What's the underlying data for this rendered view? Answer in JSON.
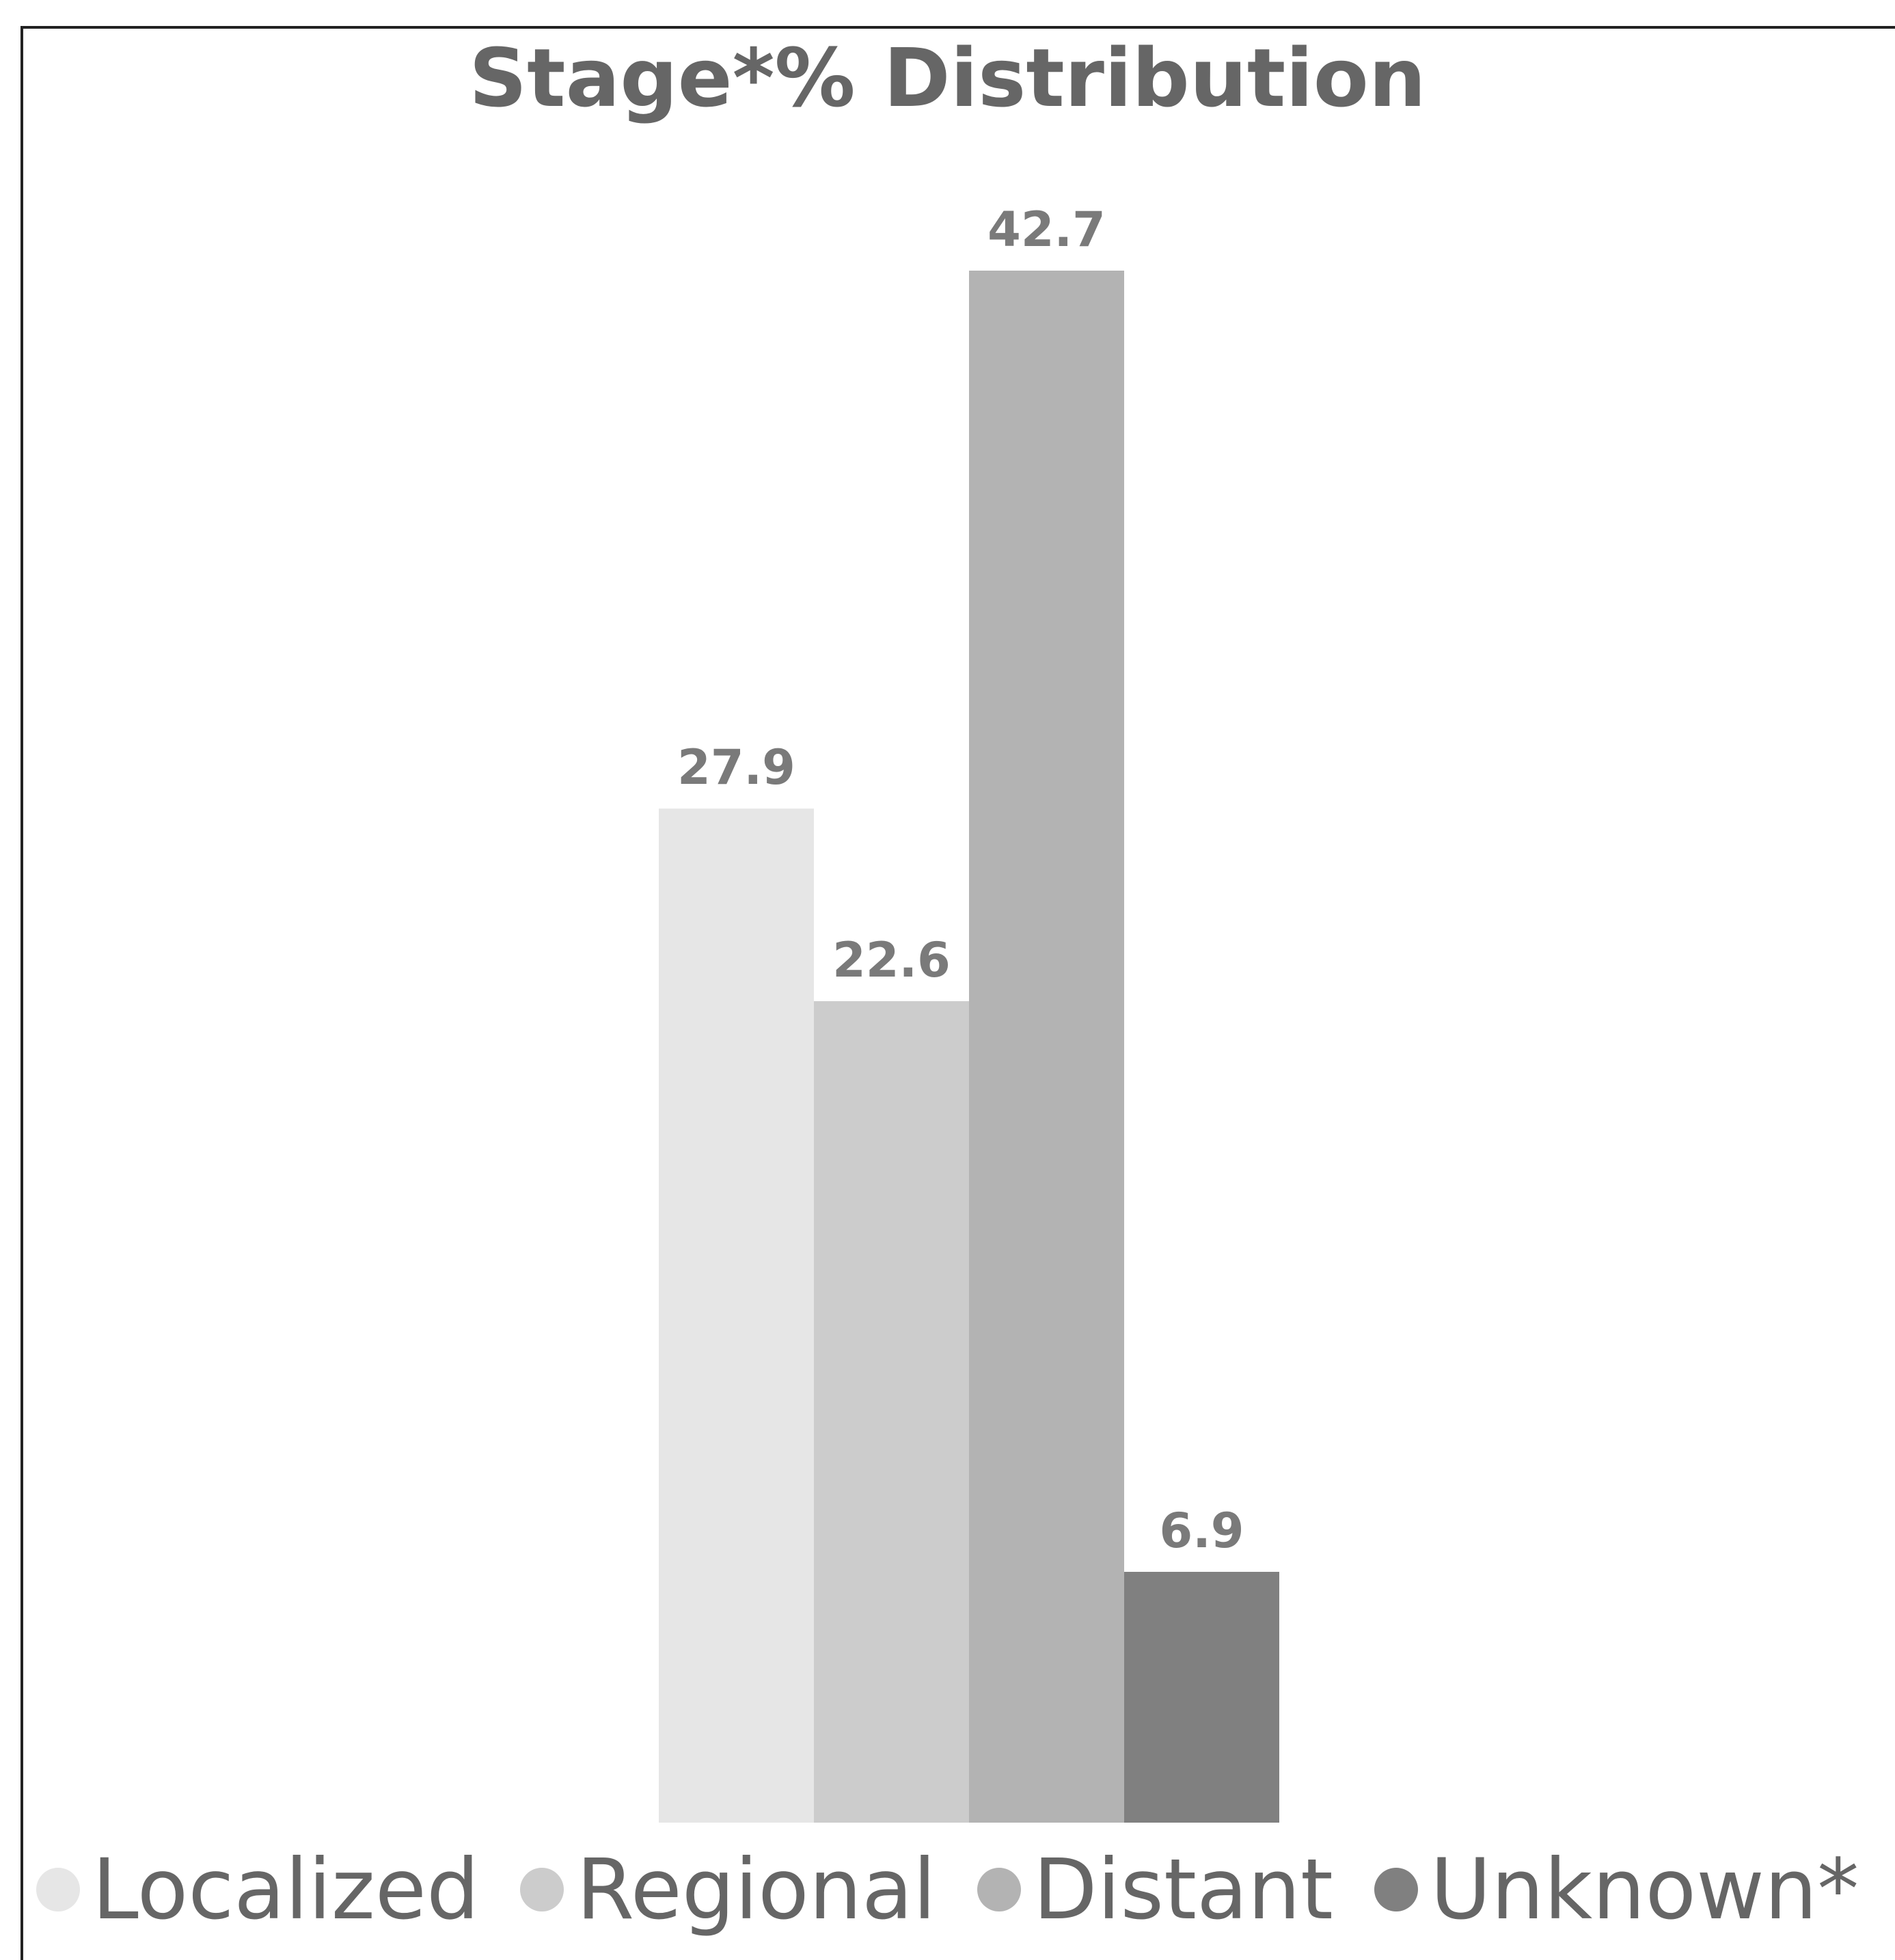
{
  "chart_data": {
    "type": "bar",
    "title": "Stage*% Distribution",
    "categories": [
      "Localized",
      "Regional",
      "Distant",
      "Unknown*"
    ],
    "values": [
      27.9,
      22.6,
      42.7,
      6.9
    ],
    "value_labels": [
      "27.9",
      "22.6",
      "42.7",
      "6.9"
    ],
    "colors": [
      "#e6e6e6",
      "#cccccc",
      "#b3b3b3",
      "#808080"
    ],
    "xlabel": "",
    "ylabel": "",
    "ylim": [
      0,
      42.7
    ],
    "grid": false,
    "legend": "bottom"
  }
}
